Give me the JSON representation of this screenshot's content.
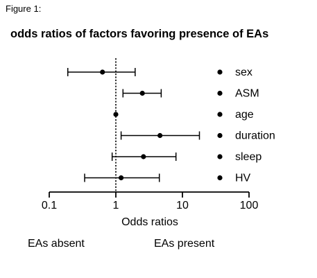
{
  "figure_label": "Figure 1:",
  "chart_data": {
    "type": "forest",
    "title": "odds ratios of factors favoring presence of EAs",
    "xlabel": "Odds ratios",
    "x_scale": "log",
    "xlim": [
      0.1,
      100
    ],
    "x_ticks": [
      {
        "value": 0.1,
        "label": "0.1"
      },
      {
        "value": 1,
        "label": "1"
      },
      {
        "value": 10,
        "label": "10"
      },
      {
        "value": 100,
        "label": "100"
      }
    ],
    "reference_line": 1,
    "rows": [
      {
        "label": "sex",
        "or": 0.63,
        "ci": [
          0.19,
          1.95
        ]
      },
      {
        "label": "ASM",
        "or": 2.5,
        "ci": [
          1.28,
          4.8
        ]
      },
      {
        "label": "age",
        "or": 1.0,
        "ci": [
          1.0,
          1.0
        ]
      },
      {
        "label": "duration",
        "or": 4.6,
        "ci": [
          1.2,
          18.0
        ]
      },
      {
        "label": "sleep",
        "or": 2.6,
        "ci": [
          0.88,
          8.0
        ]
      },
      {
        "label": "HV",
        "or": 1.2,
        "ci": [
          0.34,
          4.5
        ]
      }
    ],
    "direction_labels": {
      "left": "EAs absent",
      "right": "EAs present"
    },
    "colors": {
      "marks": "#000000",
      "background": "#ffffff"
    }
  }
}
